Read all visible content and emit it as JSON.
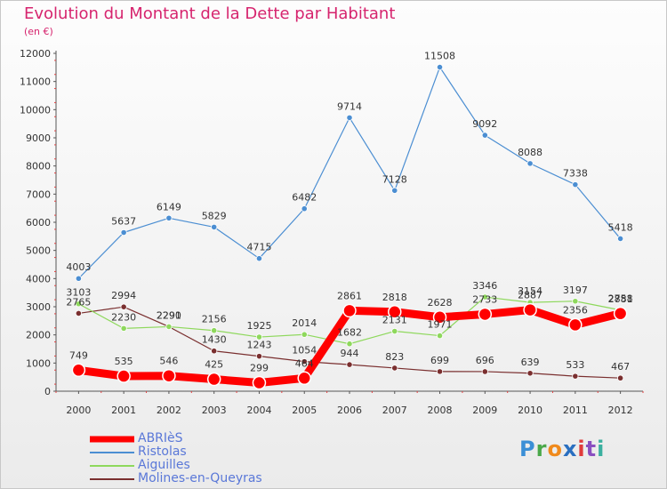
{
  "header": {
    "title": "Evolution du Montant de la Dette par Habitant",
    "unit": "(en €)"
  },
  "brand": {
    "name": "Proxiti",
    "letters": [
      "P",
      "r",
      "o",
      "x",
      "i",
      "t",
      "i"
    ],
    "colors": [
      "#3b8fd6",
      "#4aa84a",
      "#f08a1c",
      "#2a6fc0",
      "#e03b3b",
      "#8a4fc0",
      "#3bb0a0"
    ]
  },
  "chart_data": {
    "type": "line",
    "title": "Evolution du Montant de la Dette par Habitant",
    "ylabel": "(en €)",
    "xlabel": "",
    "categories": [
      "2000",
      "2001",
      "2002",
      "2003",
      "2004",
      "2005",
      "2006",
      "2007",
      "2008",
      "2009",
      "2010",
      "2011",
      "2012"
    ],
    "ylim": [
      0,
      12000
    ],
    "yticks": [
      0,
      1000,
      2000,
      3000,
      4000,
      5000,
      6000,
      7000,
      8000,
      9000,
      10000,
      11000,
      12000
    ],
    "grid": false,
    "legend": "bottom-left",
    "series": [
      {
        "name": "ABRIèS",
        "color": "#ff0000",
        "values": [
          749,
          535,
          546,
          425,
          299,
          464,
          2861,
          2818,
          2628,
          2733,
          2887,
          2356,
          2758
        ]
      },
      {
        "name": "Ristolas",
        "color": "#4b8ed2",
        "values": [
          4003,
          5637,
          6149,
          5829,
          4715,
          6482,
          9714,
          7128,
          11508,
          9092,
          8088,
          7338,
          5418
        ]
      },
      {
        "name": "Aiguilles",
        "color": "#8ed85c",
        "values": [
          3103,
          2230,
          2291,
          2156,
          1925,
          2014,
          1682,
          2131,
          1971,
          3346,
          3154,
          3197,
          2881
        ]
      },
      {
        "name": "Molines-en-Queyras",
        "color": "#7a2f2f",
        "values": [
          2765,
          2994,
          2290,
          1430,
          1243,
          1054,
          944,
          823,
          699,
          696,
          639,
          533,
          467
        ]
      }
    ]
  }
}
